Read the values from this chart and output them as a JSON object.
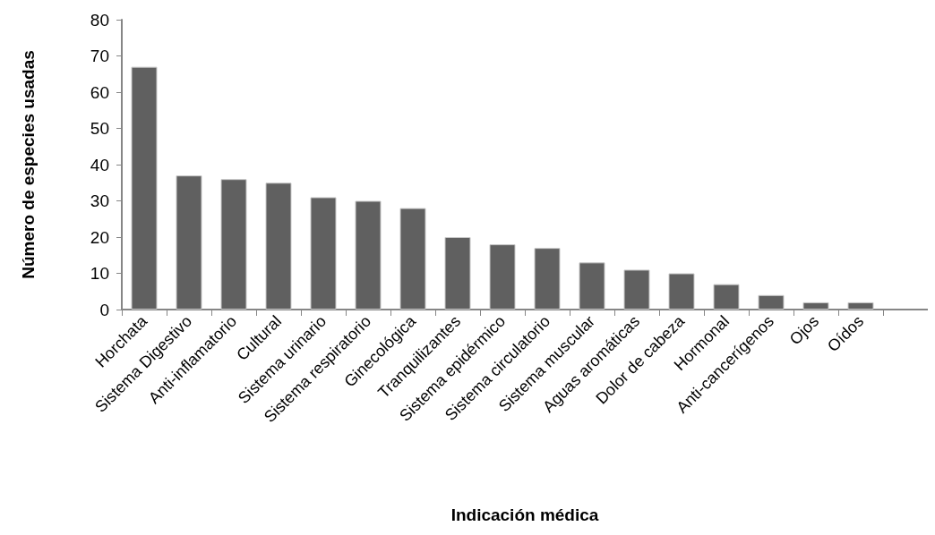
{
  "chart_data": {
    "type": "bar",
    "xlabel": "Indicación médica",
    "ylabel": "Número de especies usadas",
    "categories": [
      "Horchata",
      "Sistema Digestivo",
      "Anti-inflamatorio",
      "Cultural",
      "Sistema urinario",
      "Sistema respiratorio",
      "Ginecológica",
      "Tranquilizantes",
      "Sistema epidérmico",
      "Sistema circulatorio",
      "Sistema muscular",
      "Aguas aromáticas",
      "Dolor de cabeza",
      "Hormonal",
      "Anti-cancerígenos",
      "Ojos",
      "Oídos",
      null
    ],
    "values": [
      67,
      37,
      36,
      35,
      31,
      30,
      28,
      20,
      18,
      17,
      13,
      11,
      10,
      7,
      4,
      2,
      2,
      null
    ],
    "color": "#606060",
    "ylim": [
      0,
      80
    ],
    "yticks": [
      0,
      10,
      20,
      30,
      40,
      50,
      60,
      70,
      80
    ],
    "grid": false
  }
}
